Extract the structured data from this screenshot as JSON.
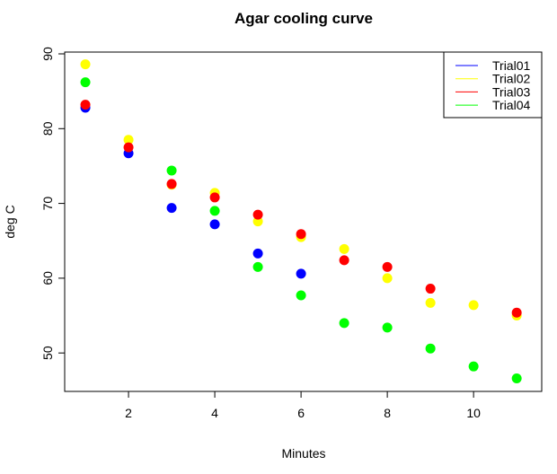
{
  "chart_data": {
    "type": "scatter",
    "title": "Agar cooling curve",
    "xlabel": "Minutes",
    "ylabel": "deg C",
    "xlim": [
      0.52,
      11.58
    ],
    "ylim": [
      44.86,
      90.24
    ],
    "xticks": [
      2,
      4,
      6,
      8,
      10
    ],
    "yticks": [
      50,
      60,
      70,
      80,
      90
    ],
    "grid": false,
    "legend_position": "top-right",
    "x": [
      1,
      2,
      3,
      4,
      5,
      6,
      7,
      8,
      9,
      10,
      11
    ],
    "series": [
      {
        "name": "Trial01",
        "color": "#0000ff",
        "values": [
          82.8,
          76.7,
          69.4,
          67.2,
          63.3,
          60.6,
          null,
          null,
          null,
          null,
          null
        ]
      },
      {
        "name": "Trial02",
        "color": "#ffff00",
        "values": [
          88.6,
          78.5,
          72.5,
          71.4,
          67.6,
          65.5,
          63.9,
          60.0,
          56.7,
          56.4,
          55.0
        ]
      },
      {
        "name": "Trial03",
        "color": "#ff0000",
        "values": [
          83.2,
          77.5,
          72.6,
          70.8,
          68.5,
          65.9,
          62.4,
          61.5,
          58.6,
          null,
          55.4
        ]
      },
      {
        "name": "Trial04",
        "color": "#00ff00",
        "values": [
          86.2,
          null,
          74.4,
          69.0,
          61.5,
          57.7,
          54.0,
          53.4,
          50.6,
          48.2,
          46.6
        ]
      }
    ]
  }
}
